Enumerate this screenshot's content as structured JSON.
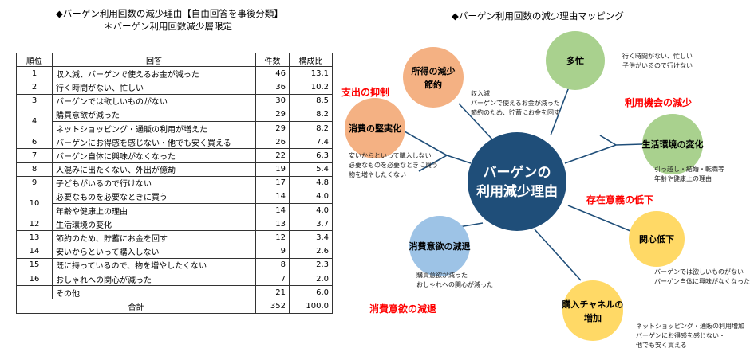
{
  "left_title": {
    "line1": "◆バーゲン利用回数の減少理由【自由回答を事後分類】",
    "line2": "＊バーゲン利用回数減少層限定"
  },
  "table": {
    "headers": [
      "順位",
      "回答",
      "件数",
      "構成比"
    ],
    "rows": [
      {
        "rank": "1",
        "answer": "収入減、バーゲンで使えるお金が減った",
        "count": "46",
        "pct": "13.1"
      },
      {
        "rank": "2",
        "answer": "行く時間がない、忙しい",
        "count": "36",
        "pct": "10.2"
      },
      {
        "rank": "3",
        "answer": "バーゲンでは欲しいものがない",
        "count": "30",
        "pct": "8.5"
      },
      {
        "rank": "4",
        "answer": "購買意欲が減った",
        "count": "29",
        "pct": "8.2"
      },
      {
        "rank": "",
        "answer": "ネットショッピング・通販の利用が増えた",
        "count": "29",
        "pct": "8.2"
      },
      {
        "rank": "6",
        "answer": "バーゲンにお得感を感じない・他でも安く買える",
        "count": "26",
        "pct": "7.4"
      },
      {
        "rank": "7",
        "answer": "バーゲン自体に興味がなくなった",
        "count": "22",
        "pct": "6.3"
      },
      {
        "rank": "8",
        "answer": "人混みに出たくない、外出が億劫",
        "count": "19",
        "pct": "5.4"
      },
      {
        "rank": "9",
        "answer": "子どもがいるので行けない",
        "count": "17",
        "pct": "4.8"
      },
      {
        "rank": "10",
        "answer": "必要なものを必要なときに買う",
        "count": "14",
        "pct": "4.0"
      },
      {
        "rank": "",
        "answer": "年齢や健康上の理由",
        "count": "14",
        "pct": "4.0"
      },
      {
        "rank": "12",
        "answer": "生活環境の変化",
        "count": "13",
        "pct": "3.7"
      },
      {
        "rank": "13",
        "answer": "節約のため、貯蓄にお金を回す",
        "count": "12",
        "pct": "3.4"
      },
      {
        "rank": "14",
        "answer": "安いからといって購入しない",
        "count": "9",
        "pct": "2.6"
      },
      {
        "rank": "15",
        "answer": "既に持っているので、物を増やしたくない",
        "count": "8",
        "pct": "2.3"
      },
      {
        "rank": "16",
        "answer": "おしゃれへの関心が減った",
        "count": "7",
        "pct": "2.0"
      },
      {
        "rank": "",
        "answer": "その他",
        "count": "21",
        "pct": "6.0"
      }
    ],
    "total": {
      "label": "合計",
      "count": "352",
      "pct": "100.0"
    }
  },
  "map": {
    "title": "◆バーゲン利用回数の減少理由マッピング",
    "center": {
      "line1": "バーゲンの",
      "line2": "利用減少理由",
      "color": "#1f4e79"
    },
    "nodes": [
      {
        "id": "income",
        "line1": "所得の減少",
        "line2": "節約",
        "color": "#f4b183",
        "note": [
          "収入減",
          "バーゲンで使えるお金が減った",
          "節約のため、貯蓄にお金を回す"
        ]
      },
      {
        "id": "frugal",
        "line1": "消費の堅実化",
        "line2": "",
        "color": "#f4b183",
        "note": [
          "安いからといって購入しない",
          "必要なものを必要なときに買う",
          "物を増やしたくない"
        ]
      },
      {
        "id": "busy",
        "line1": "多忙",
        "line2": "",
        "color": "#a9d18e",
        "note": [
          "行く時間がない、忙しい",
          "子供がいるので行けない"
        ]
      },
      {
        "id": "life",
        "line1": "生活環境の変化",
        "line2": "",
        "color": "#a9d18e",
        "note": [
          "引っ越し・結婚・転職等",
          "年齢や健康上の理由"
        ]
      },
      {
        "id": "interest",
        "line1": "関心低下",
        "line2": "",
        "color": "#ffd966",
        "note": [
          "バーゲンでは欲しいものがない",
          "バーゲン自体に興味がなくなった"
        ]
      },
      {
        "id": "channel",
        "line1": "購入チャネルの",
        "line2": "増加",
        "color": "#ffd966",
        "note": [
          "ネットショッピング・通販の利用増加",
          "バーゲンにお得感を感じない・",
          "他でも安く買える"
        ]
      },
      {
        "id": "desire",
        "line1": "消費意欲の減退",
        "line2": "",
        "color": "#9dc3e6",
        "note": [
          "購買意欲が減った",
          "おしゃれへの関心が減った"
        ]
      }
    ],
    "categories": [
      {
        "id": "cat-spending",
        "label": "支出の抑制",
        "color": "#ff0000"
      },
      {
        "id": "cat-usage",
        "label": "利用機会の減少",
        "color": "#ff0000"
      },
      {
        "id": "cat-value",
        "label": "存在意義の低下",
        "color": "#ff0000"
      },
      {
        "id": "cat-desire",
        "label": "消費意欲の減退",
        "color": "#ff0000"
      }
    ]
  }
}
